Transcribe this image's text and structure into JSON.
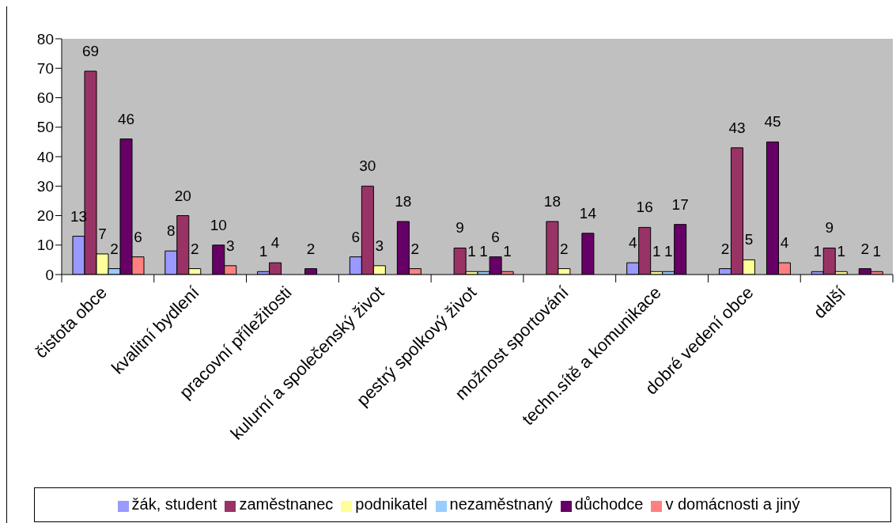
{
  "chart_data": {
    "type": "bar",
    "categories": [
      "čistota obce",
      "kvalitní bydlení",
      "pracovní příležitosti",
      "kulurní a společenský život",
      "pestrý spolkový život",
      "možnost sportování",
      "techn.sítě a komunikace",
      "dobré vedení obce",
      "další"
    ],
    "series": [
      {
        "name": "žák, student",
        "color": "#9999ff",
        "values": [
          13,
          8,
          1,
          6,
          null,
          null,
          4,
          2,
          1
        ]
      },
      {
        "name": "zaměstnanec",
        "color": "#993366",
        "values": [
          69,
          20,
          4,
          30,
          9,
          18,
          16,
          43,
          9
        ]
      },
      {
        "name": "podnikatel",
        "color": "#ffff99",
        "values": [
          7,
          2,
          null,
          3,
          1,
          2,
          1,
          5,
          1
        ]
      },
      {
        "name": "nezaměstnaný",
        "color": "#99ccff",
        "values": [
          2,
          null,
          null,
          null,
          1,
          null,
          1,
          null,
          null
        ]
      },
      {
        "name": "důchodce",
        "color": "#660066",
        "values": [
          46,
          10,
          2,
          18,
          6,
          14,
          17,
          45,
          2
        ]
      },
      {
        "name": "v domácnosti a jiný",
        "color": "#ff8080",
        "values": [
          6,
          3,
          null,
          2,
          1,
          null,
          null,
          4,
          1
        ]
      }
    ],
    "ylim": [
      0,
      80
    ],
    "yticks": [
      0,
      10,
      20,
      30,
      40,
      50,
      60,
      70,
      80
    ],
    "grid": false,
    "legend": "bottom",
    "data_labels": true
  }
}
